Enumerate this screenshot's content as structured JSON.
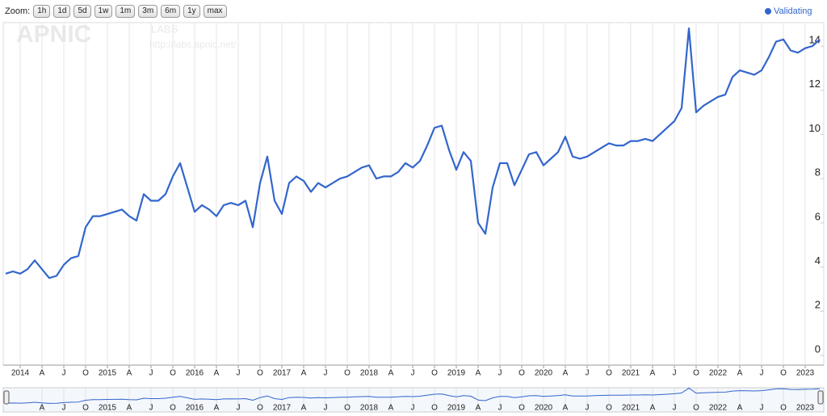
{
  "chart_data": {
    "type": "line",
    "zoom": {
      "label": "Zoom:",
      "buttons": [
        "1h",
        "1d",
        "5d",
        "1w",
        "1m",
        "3m",
        "6m",
        "1y",
        "max"
      ]
    },
    "watermark": {
      "logo": "APNIC",
      "sub": "LABS",
      "url": "http://labs.apnic.net/"
    },
    "x": [
      "2013-11",
      "2013-12",
      "2014-01",
      "2014-02",
      "2014-03",
      "2014-04",
      "2014-05",
      "2014-06",
      "2014-07",
      "2014-08",
      "2014-09",
      "2014-10",
      "2014-11",
      "2014-12",
      "2015-01",
      "2015-02",
      "2015-03",
      "2015-04",
      "2015-05",
      "2015-06",
      "2015-07",
      "2015-08",
      "2015-09",
      "2015-10",
      "2015-11",
      "2015-12",
      "2016-01",
      "2016-02",
      "2016-03",
      "2016-04",
      "2016-05",
      "2016-06",
      "2016-07",
      "2016-08",
      "2016-09",
      "2016-10",
      "2016-11",
      "2016-12",
      "2017-01",
      "2017-02",
      "2017-03",
      "2017-04",
      "2017-05",
      "2017-06",
      "2017-07",
      "2017-08",
      "2017-09",
      "2017-10",
      "2017-11",
      "2017-12",
      "2018-01",
      "2018-02",
      "2018-03",
      "2018-04",
      "2018-05",
      "2018-06",
      "2018-07",
      "2018-08",
      "2018-09",
      "2018-10",
      "2018-11",
      "2018-12",
      "2019-01",
      "2019-02",
      "2019-03",
      "2019-04",
      "2019-05",
      "2019-06",
      "2019-07",
      "2019-08",
      "2019-09",
      "2019-10",
      "2019-11",
      "2019-12",
      "2020-01",
      "2020-02",
      "2020-03",
      "2020-04",
      "2020-05",
      "2020-06",
      "2020-07",
      "2020-08",
      "2020-09",
      "2020-10",
      "2020-11",
      "2020-12",
      "2021-01",
      "2021-02",
      "2021-03",
      "2021-04",
      "2021-05",
      "2021-06",
      "2021-07",
      "2021-08",
      "2021-09",
      "2021-10",
      "2021-11",
      "2021-12",
      "2022-01",
      "2022-02",
      "2022-03",
      "2022-04",
      "2022-05",
      "2022-06",
      "2022-07",
      "2022-08",
      "2022-09",
      "2022-10",
      "2022-11",
      "2022-12",
      "2023-01",
      "2023-02",
      "2023-03"
    ],
    "series": [
      {
        "name": "Validating",
        "color": "#3366cc",
        "values": [
          3.7,
          3.8,
          3.7,
          3.9,
          4.3,
          3.9,
          3.5,
          3.6,
          4.1,
          4.4,
          4.5,
          5.8,
          6.3,
          6.3,
          6.4,
          6.5,
          6.6,
          6.3,
          6.1,
          7.3,
          7.0,
          7.0,
          7.3,
          8.1,
          8.7,
          7.6,
          6.5,
          6.8,
          6.6,
          6.3,
          6.8,
          6.9,
          6.8,
          7.0,
          5.8,
          7.8,
          9.0,
          7.0,
          6.4,
          7.8,
          8.1,
          7.9,
          7.4,
          7.8,
          7.6,
          7.8,
          8.0,
          8.1,
          8.3,
          8.5,
          8.6,
          8.0,
          8.1,
          8.1,
          8.3,
          8.7,
          8.5,
          8.8,
          9.5,
          10.3,
          10.4,
          9.3,
          8.4,
          9.2,
          8.8,
          6.0,
          5.5,
          7.6,
          8.7,
          8.7,
          7.7,
          8.4,
          9.1,
          9.2,
          8.6,
          8.9,
          9.2,
          9.9,
          9.0,
          8.9,
          9.0,
          9.2,
          9.4,
          9.6,
          9.5,
          9.5,
          9.7,
          9.7,
          9.8,
          9.7,
          10.0,
          10.3,
          10.6,
          11.2,
          14.8,
          11.0,
          11.3,
          11.5,
          11.7,
          11.8,
          12.6,
          12.9,
          12.8,
          12.7,
          12.9,
          13.5,
          14.2,
          14.3,
          13.8,
          13.7,
          13.9,
          14.0,
          14.3
        ]
      }
    ],
    "ylim": [
      -0.44,
      15.06
    ],
    "yticks": [
      0,
      2,
      4,
      6,
      8,
      10,
      12,
      14
    ],
    "xticks": [
      {
        "value": "2014-01",
        "label": "2014"
      },
      {
        "value": "2014-04",
        "label": "A"
      },
      {
        "value": "2014-07",
        "label": "J"
      },
      {
        "value": "2014-10",
        "label": "O"
      },
      {
        "value": "2015-01",
        "label": "2015"
      },
      {
        "value": "2015-04",
        "label": "A"
      },
      {
        "value": "2015-07",
        "label": "J"
      },
      {
        "value": "2015-10",
        "label": "O"
      },
      {
        "value": "2016-01",
        "label": "2016"
      },
      {
        "value": "2016-04",
        "label": "A"
      },
      {
        "value": "2016-07",
        "label": "J"
      },
      {
        "value": "2016-10",
        "label": "O"
      },
      {
        "value": "2017-01",
        "label": "2017"
      },
      {
        "value": "2017-04",
        "label": "A"
      },
      {
        "value": "2017-07",
        "label": "J"
      },
      {
        "value": "2017-10",
        "label": "O"
      },
      {
        "value": "2018-01",
        "label": "2018"
      },
      {
        "value": "2018-04",
        "label": "A"
      },
      {
        "value": "2018-07",
        "label": "J"
      },
      {
        "value": "2018-10",
        "label": "O"
      },
      {
        "value": "2019-01",
        "label": "2019"
      },
      {
        "value": "2019-04",
        "label": "A"
      },
      {
        "value": "2019-07",
        "label": "J"
      },
      {
        "value": "2019-10",
        "label": "O"
      },
      {
        "value": "2020-01",
        "label": "2020"
      },
      {
        "value": "2020-04",
        "label": "A"
      },
      {
        "value": "2020-07",
        "label": "J"
      },
      {
        "value": "2020-10",
        "label": "O"
      },
      {
        "value": "2021-01",
        "label": "2021"
      },
      {
        "value": "2021-04",
        "label": "A"
      },
      {
        "value": "2021-07",
        "label": "J"
      },
      {
        "value": "2021-10",
        "label": "O"
      },
      {
        "value": "2022-01",
        "label": "2022"
      },
      {
        "value": "2022-04",
        "label": "A"
      },
      {
        "value": "2022-07",
        "label": "J"
      },
      {
        "value": "2022-10",
        "label": "O"
      },
      {
        "value": "2023-01",
        "label": "2023"
      }
    ],
    "grid": true,
    "legend": "top-right"
  }
}
